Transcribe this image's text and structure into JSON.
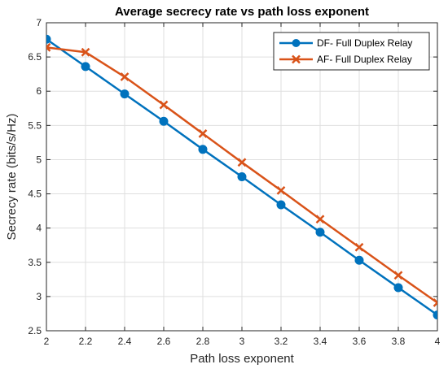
{
  "chart_data": {
    "type": "line",
    "title": "Average secrecy rate vs path loss exponent",
    "xlabel": "Path loss exponent",
    "ylabel": "Secrecy rate (bits/s/Hz)",
    "xlim": [
      2,
      4
    ],
    "ylim": [
      2.5,
      7
    ],
    "xticks": [
      2,
      2.2,
      2.4,
      2.6,
      2.8,
      3,
      3.2,
      3.4,
      3.6,
      3.8,
      4
    ],
    "xtick_labels": [
      "2",
      "2.2",
      "2.4",
      "2.6",
      "2.8",
      "3",
      "3.2",
      "3.4",
      "3.6",
      "3.8",
      "4"
    ],
    "yticks": [
      2.5,
      3,
      3.5,
      4,
      4.5,
      5,
      5.5,
      6,
      6.5,
      7
    ],
    "ytick_labels": [
      "2.5",
      "3",
      "3.5",
      "4",
      "4.5",
      "5",
      "5.5",
      "6",
      "6.5",
      "7"
    ],
    "grid": true,
    "legend_position": "top-right",
    "x": [
      2,
      2.2,
      2.4,
      2.6,
      2.8,
      3,
      3.2,
      3.4,
      3.6,
      3.8,
      4
    ],
    "series": [
      {
        "name": "DF- Full Duplex Relay",
        "marker": "circle",
        "color": "#0072BD",
        "values": [
          6.76,
          6.36,
          5.96,
          5.56,
          5.15,
          4.75,
          4.34,
          3.94,
          3.53,
          3.13,
          2.73
        ]
      },
      {
        "name": "AF- Full Duplex Relay",
        "marker": "x",
        "color": "#D95319",
        "values": [
          6.64,
          6.57,
          6.21,
          5.8,
          5.38,
          4.96,
          4.55,
          4.13,
          3.72,
          3.31,
          2.91
        ]
      }
    ]
  }
}
